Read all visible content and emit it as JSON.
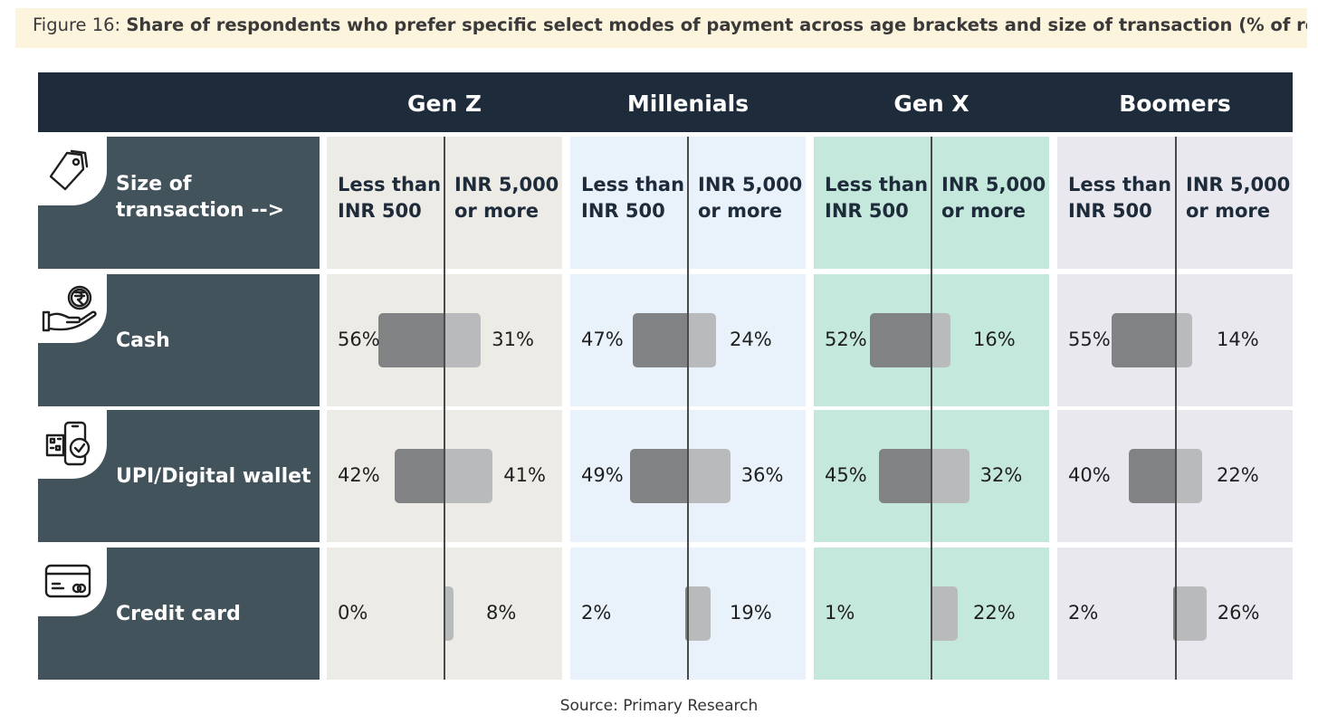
{
  "figure": {
    "prefix": "Figure 16: ",
    "title": "Share of respondents who prefer specific select modes of payment across age brackets and size of transaction (% of respondents)"
  },
  "source": "Source: Primary Research",
  "colors": {
    "title_bg": "#fdf4dd",
    "header_band": "#1e2b3a",
    "row_label_bg": "#42535c",
    "bar_small": "#808284",
    "bar_large": "#b8babc",
    "gen_backgrounds": [
      "#ecebe6",
      "#e9f1fa",
      "#c5e8dc",
      "#e9e8ee"
    ]
  },
  "row_labels": [
    {
      "label": "Size of\ntransaction -->",
      "icon": "price-tag-icon"
    },
    {
      "label": "Cash",
      "icon": "rupee-coin-hand-icon"
    },
    {
      "label": "UPI/Digital wallet",
      "icon": "qr-phone-check-icon"
    },
    {
      "label": "Credit card",
      "icon": "credit-card-icon"
    }
  ],
  "chart_data": {
    "type": "bar",
    "title": "Share of respondents who prefer specific select modes of payment across age brackets and size of transaction (% of respondents)",
    "generations": [
      "Gen Z",
      "Millenials",
      "Gen X",
      "Boomers"
    ],
    "transaction_sizes": [
      "Less than\nINR 500",
      "INR 5,000\nor more"
    ],
    "payment_modes": [
      "Cash",
      "UPI/Digital wallet",
      "Credit card"
    ],
    "series": [
      {
        "name": "Less than INR 500",
        "values": {
          "Gen Z": [
            56,
            42,
            0
          ],
          "Millenials": [
            47,
            49,
            2
          ],
          "Gen X": [
            52,
            45,
            1
          ],
          "Boomers": [
            55,
            40,
            2
          ]
        }
      },
      {
        "name": "INR 5,000 or more",
        "values": {
          "Gen Z": [
            31,
            41,
            8
          ],
          "Millenials": [
            24,
            36,
            19
          ],
          "Gen X": [
            16,
            32,
            22
          ],
          "Boomers": [
            14,
            22,
            26
          ]
        }
      }
    ],
    "value_labels_small": {
      "Gen Z": [
        "56%",
        "42%",
        "0%"
      ],
      "Millenials": [
        "47%",
        "49%",
        "2%"
      ],
      "Gen X": [
        "52%",
        "45%",
        "1%"
      ],
      "Boomers": [
        "55%",
        "40%",
        "2%"
      ]
    },
    "value_labels_large": {
      "Gen Z": [
        "31%",
        "41%",
        "8%"
      ],
      "Millenials": [
        "24%",
        "36%",
        "19%"
      ],
      "Gen X": [
        "16%",
        "32%",
        "22%"
      ],
      "Boomers": [
        "14%",
        "22%",
        "26%"
      ]
    }
  }
}
